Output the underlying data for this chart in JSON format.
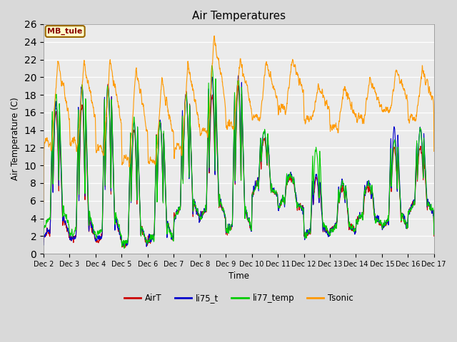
{
  "title": "Air Temperatures",
  "ylabel": "Air Temperature (C)",
  "xlabel": "Time",
  "annotation": "MB_tule",
  "ylim": [
    0,
    26
  ],
  "xlim_days": [
    2,
    17
  ],
  "series_colors": {
    "AirT": "#cc0000",
    "li75_t": "#0000cc",
    "li77_temp": "#00cc00",
    "Tsonic": "#ff9900"
  },
  "plot_bg_color": "#ebebeb",
  "tick_labels": [
    "Dec 2",
    "Dec 3",
    "Dec 4",
    "Dec 5",
    "Dec 6",
    "Dec 7",
    "Dec 8",
    "Dec 9",
    "Dec 10",
    "Dec 11",
    "Dec 12",
    "Dec 13",
    "Dec 14",
    "Dec 15",
    "Dec 16",
    "Dec 17"
  ],
  "tick_positions": [
    2,
    3,
    4,
    5,
    6,
    7,
    8,
    9,
    10,
    11,
    12,
    13,
    14,
    15,
    16,
    17
  ],
  "yticks": [
    0,
    2,
    4,
    6,
    8,
    10,
    12,
    14,
    16,
    18,
    20,
    22,
    24,
    26
  ]
}
